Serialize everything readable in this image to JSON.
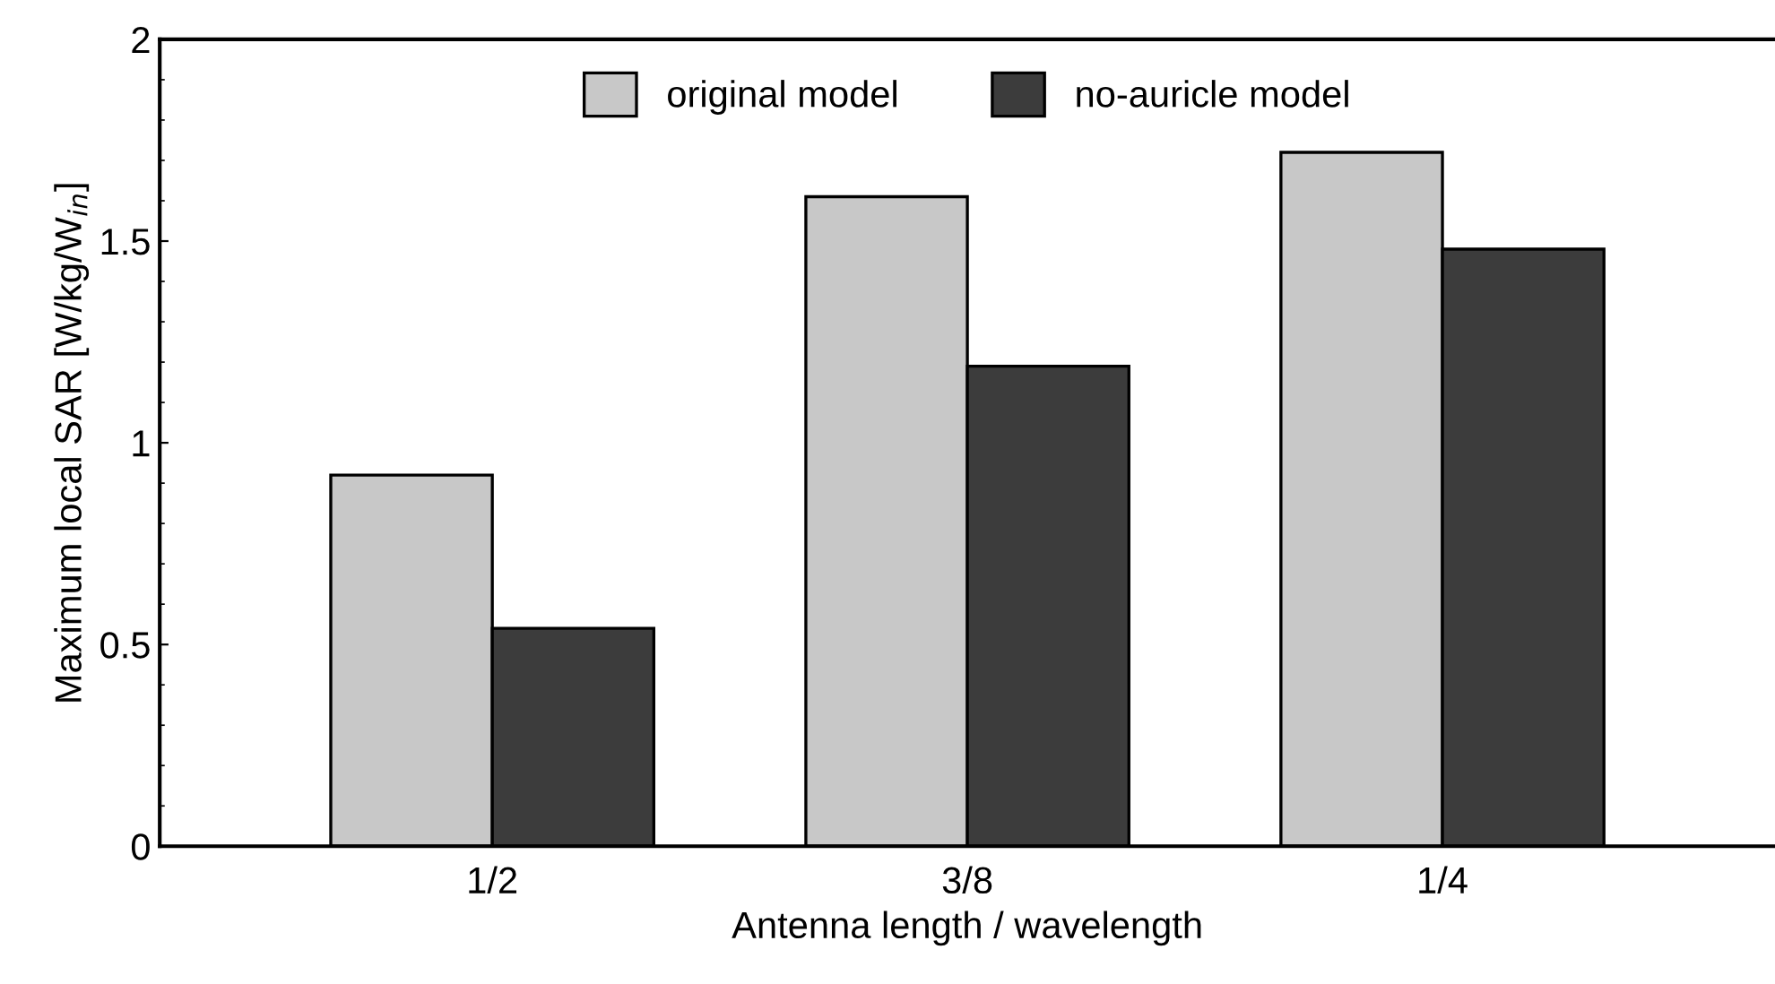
{
  "chart_data": {
    "type": "bar",
    "xlabel": "Antenna length / wavelength",
    "ylabel": "Maximum local SAR [W/kg/W$_{in}$]",
    "categories": [
      "1/2",
      "3/8",
      "1/4"
    ],
    "series": [
      {
        "name": "original model",
        "color": "#c8c8c8",
        "values": [
          0.92,
          1.61,
          1.72
        ]
      },
      {
        "name": "no-auricle model",
        "color": "#3c3c3c",
        "values": [
          0.54,
          1.19,
          1.48
        ]
      }
    ],
    "ylim": [
      0,
      2
    ],
    "yticks": [
      0,
      0.5,
      1,
      1.5,
      2
    ],
    "grid": false,
    "legend": "top"
  }
}
